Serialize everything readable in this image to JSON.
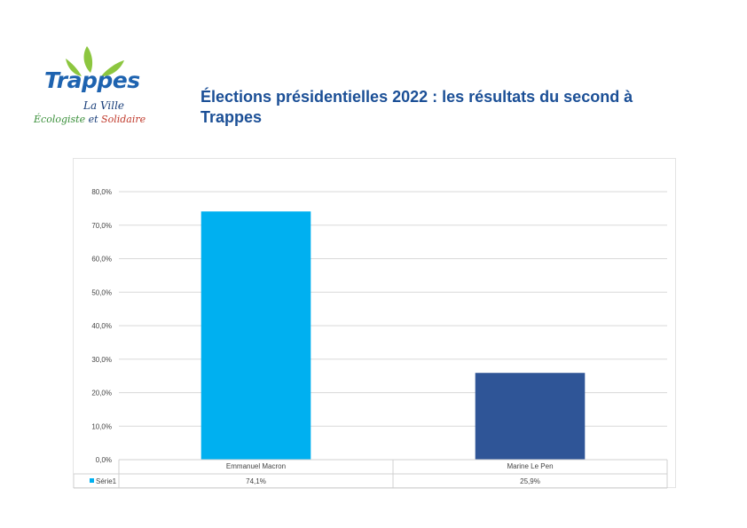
{
  "logo": {
    "name": "Trappes",
    "line1": "La Ville",
    "line2a": "Écologiste",
    "line2b": "et",
    "line2c": "Solidaire",
    "colors": {
      "leaf": "#8cc63f",
      "name": "#1e63b0",
      "red": "#c0392b"
    }
  },
  "title": "Élections présidentielles 2022 : les résultats du second à Trappes",
  "chart_data": {
    "type": "bar",
    "categories": [
      "Emmanuel Macron",
      "Marine Le Pen"
    ],
    "series": [
      {
        "name": "Série1",
        "values": [
          74.1,
          25.9
        ],
        "labels": [
          "74,1%",
          "25,9%"
        ]
      }
    ],
    "bar_colors": [
      "#00b0f0",
      "#2f5597"
    ],
    "ylim": [
      0,
      80
    ],
    "yticks": [
      0,
      10,
      20,
      30,
      40,
      50,
      60,
      70,
      80
    ],
    "ytick_labels": [
      "0,0%",
      "10,0%",
      "20,0%",
      "30,0%",
      "40,0%",
      "50,0%",
      "60,0%",
      "70,0%",
      "80,0%"
    ],
    "grid": true,
    "data_table": true
  }
}
